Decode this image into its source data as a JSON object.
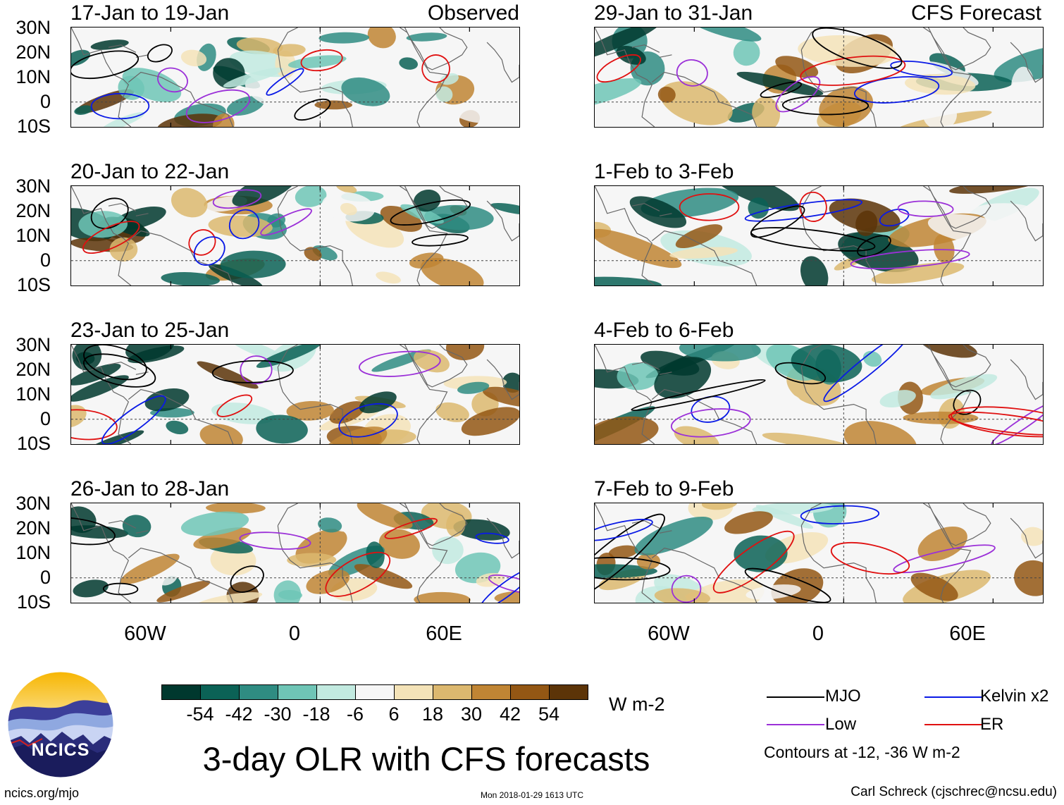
{
  "chart_data": {
    "type": "heatmap",
    "title": "3-day OLR with CFS forecasts",
    "units": "W m-2",
    "colorbar": {
      "levels": [
        -54,
        -42,
        -30,
        -18,
        -6,
        6,
        18,
        30,
        42,
        54
      ],
      "level_labels": [
        "-54",
        "-42",
        "-30",
        "-18",
        "-6",
        "6",
        "18",
        "30",
        "42",
        "54"
      ],
      "colors": [
        "#00382e",
        "#0b6256",
        "#2f8c82",
        "#6fc5b6",
        "#c2eae0",
        "#f6f6f6",
        "#f4e3b8",
        "#dcb86f",
        "#c08534",
        "#935714",
        "#5c3408"
      ]
    },
    "lat_labels": [
      "30N",
      "20N",
      "10N",
      "0",
      "10S"
    ],
    "lon_labels": [
      "60W",
      "0",
      "60E"
    ],
    "columns": [
      "Observed",
      "CFS Forecast"
    ],
    "legend": {
      "items": [
        {
          "label": "MJO",
          "color": "#000000"
        },
        {
          "label": "Kelvin x2",
          "color": "#0a1ae6"
        },
        {
          "label": "Low",
          "color": "#9b30d8"
        },
        {
          "label": "ER",
          "color": "#e01010"
        }
      ],
      "note": "Contours at -12, -36 W m-2"
    },
    "panels": [
      {
        "title": "17-Jan to 19-Jan",
        "tag": "Observed"
      },
      {
        "title": "20-Jan to 22-Jan",
        "tag": ""
      },
      {
        "title": "23-Jan to 25-Jan",
        "tag": ""
      },
      {
        "title": "26-Jan to 28-Jan",
        "tag": ""
      },
      {
        "title": "29-Jan to 31-Jan",
        "tag": "CFS Forecast"
      },
      {
        "title": "1-Feb to 3-Feb",
        "tag": ""
      },
      {
        "title": "4-Feb to 6-Feb",
        "tag": ""
      },
      {
        "title": "7-Feb to 9-Feb",
        "tag": ""
      }
    ]
  },
  "footer": {
    "logo_text": "NCICS",
    "site": "ncics.org/mjo",
    "timestamp": "Mon 2018-01-29 1613 UTC",
    "author": "Carl Schreck (cjschrec@ncsu.edu)"
  }
}
